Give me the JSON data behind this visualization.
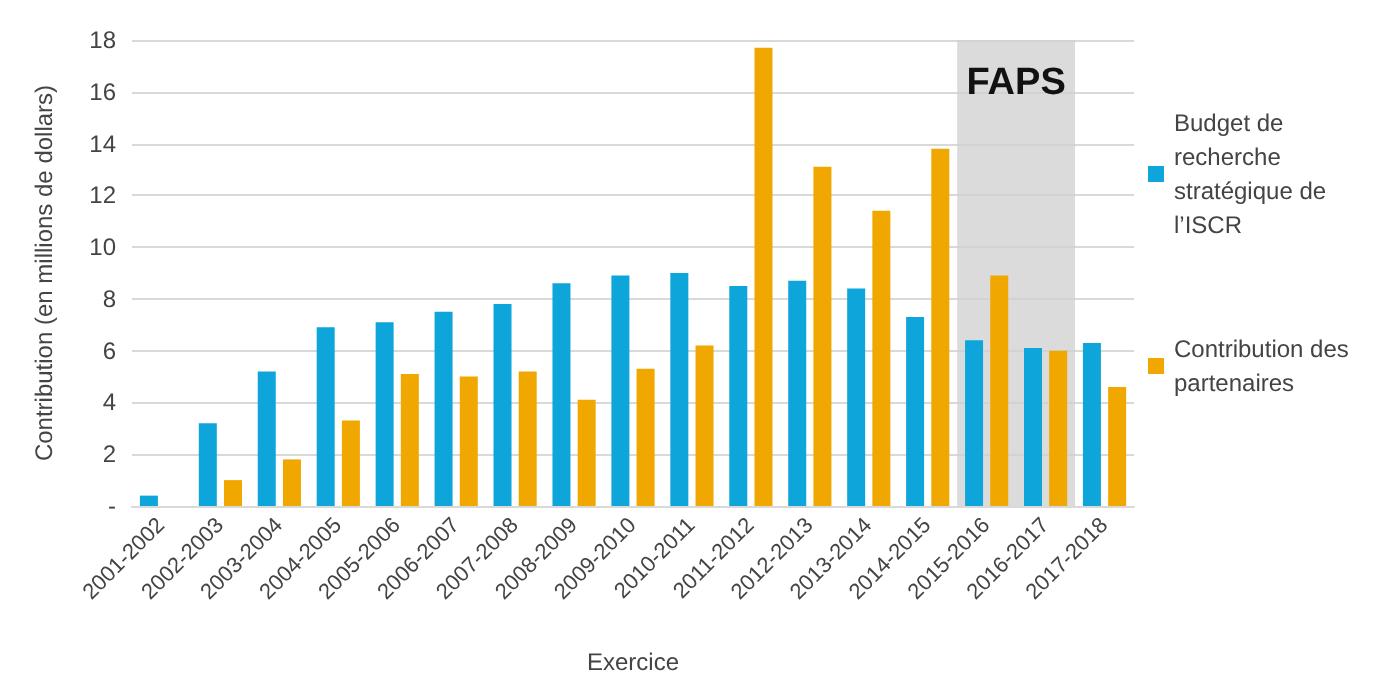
{
  "chart_data": {
    "type": "bar",
    "xlabel": "Exercice",
    "ylabel": "Contribution (en millions de dollars)",
    "categories": [
      "2001-2002",
      "2002-2003",
      "2003-2004",
      "2004-2005",
      "2005-2006",
      "2006-2007",
      "2007-2008",
      "2008-2009",
      "2009-2010",
      "2010-2011",
      "2011-2012",
      "2012-2013",
      "2013-2014",
      "2014-2015",
      "2015-2016",
      "2016-2017",
      "2017-2018"
    ],
    "series": [
      {
        "name": "Budget de recherche stratégique de l’ISCR",
        "color": "#0ea5db",
        "values": [
          0.4,
          3.2,
          5.2,
          6.9,
          7.1,
          7.5,
          7.8,
          8.6,
          8.9,
          9.0,
          8.5,
          8.7,
          8.4,
          7.3,
          6.4,
          6.1,
          6.3
        ]
      },
      {
        "name": "Contribution des partenaires",
        "color": "#f0a800",
        "values": [
          null,
          1.0,
          1.8,
          3.3,
          5.1,
          5.0,
          5.2,
          4.1,
          5.3,
          6.2,
          17.7,
          13.1,
          11.4,
          13.8,
          8.9,
          6.0,
          4.6
        ]
      }
    ],
    "ylim": [
      0,
      18
    ],
    "yticks": [
      {
        "value": 0,
        "label": "-"
      },
      2,
      4,
      6,
      8,
      10,
      12,
      14,
      16,
      18
    ],
    "bands": [
      {
        "axis": "x",
        "from": "2015-2016",
        "to": "2016-2017",
        "label": "FAPS",
        "color": "#d0cfd0"
      }
    ],
    "grid": "y",
    "legend": "right"
  }
}
